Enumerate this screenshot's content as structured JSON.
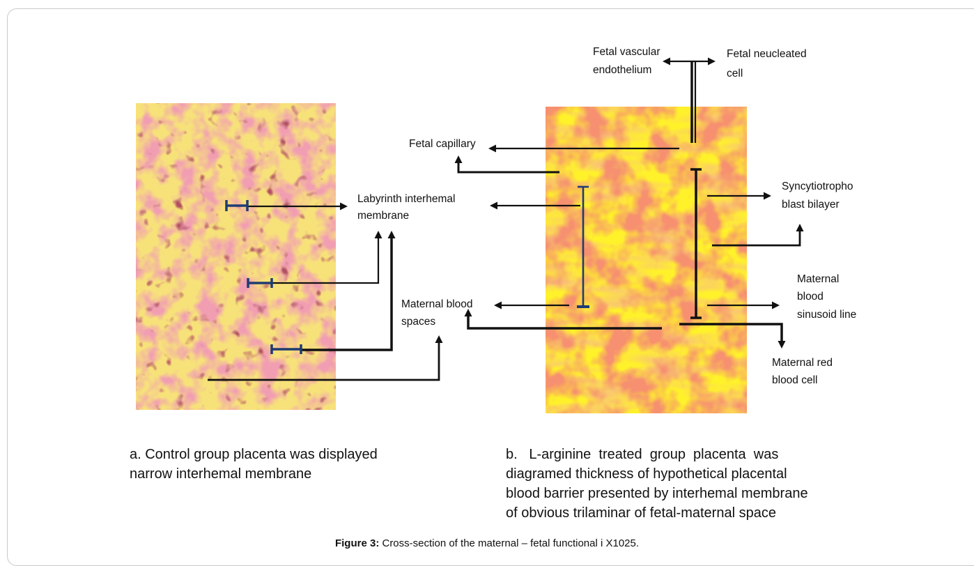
{
  "figure": {
    "caption_label": "Figure 3:",
    "caption_text": "Cross-section of the maternal – fetal functional i X1025."
  },
  "panel_a": {
    "caption_line1": "a. Control group placenta was displayed",
    "caption_line2": "narrow interhemal membrane",
    "labels": {
      "labyrinth_line1": "Labyrinth interhemal",
      "labyrinth_line2": "membrane",
      "maternal_spaces_line1": "Maternal blood",
      "maternal_spaces_line2": "spaces"
    }
  },
  "panel_b": {
    "caption_line1": "b.   L-arginine  treated  group  placenta  was",
    "caption_line2": "diagramed thickness of hypothetical placental",
    "caption_line3": "blood barrier presented by interhemal membrane",
    "caption_line4": "of obvious trilaminar of fetal-maternal space",
    "labels": {
      "fetal_vascular_line1": "Fetal vascular",
      "fetal_vascular_line2": "endothelium",
      "fetal_nucleated_line1": "Fetal  neucleated",
      "fetal_nucleated_line2": "cell",
      "fetal_capillary": "Fetal capillary",
      "syncytio_line1": "Syncytiotropho",
      "syncytio_line2": "blast bilayer",
      "maternal_sinusoid_line1": "Maternal",
      "maternal_sinusoid_line2": "blood",
      "maternal_sinusoid_line3": "sinusoid line",
      "maternal_rbc_line1": "Maternal red",
      "maternal_rbc_line2": "blood cell"
    }
  },
  "colors": {
    "tissue_a_bg": "#f7e27a",
    "tissue_a_cells": "#e0607a",
    "tissue_b_bg": "#fff22a",
    "tissue_b_cells": "#e8452c",
    "scale_bar": "#1f3b73"
  }
}
